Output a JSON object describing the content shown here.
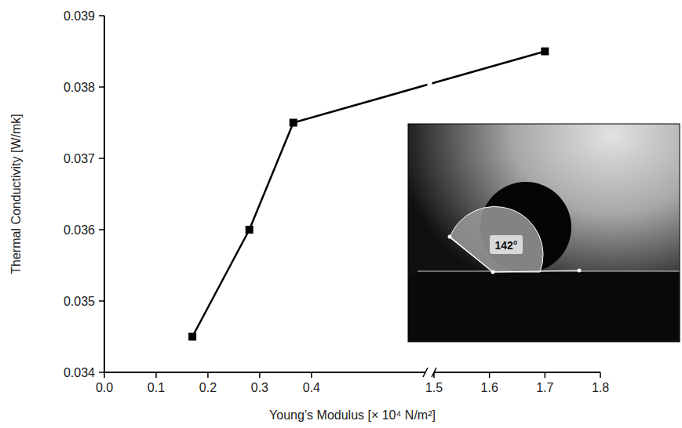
{
  "chart_data": {
    "type": "line",
    "xlabel": "Young’s Modulus [× 10⁴ N/m²]",
    "ylabel": "Thermal Conductivity [W/mk]",
    "x": [
      0.17,
      0.28,
      0.365,
      1.7
    ],
    "values": [
      0.0345,
      0.036,
      0.0375,
      0.0385
    ],
    "color": "#000000",
    "marker": "square",
    "line_style": "solid",
    "xlim": [
      0,
      1.8
    ],
    "x_break": [
      0.62,
      1.5
    ],
    "xticks": [
      {
        "value": 0,
        "label": "0.0"
      },
      0.1,
      0.2,
      0.3,
      0.4,
      1.5,
      1.6,
      1.7,
      1.8
    ],
    "ylim": [
      0.034,
      0.039
    ],
    "yticks": [
      0.034,
      0.035,
      0.036,
      0.037,
      0.038,
      0.039
    ],
    "grid": false,
    "annotations": [
      "142°"
    ]
  }
}
